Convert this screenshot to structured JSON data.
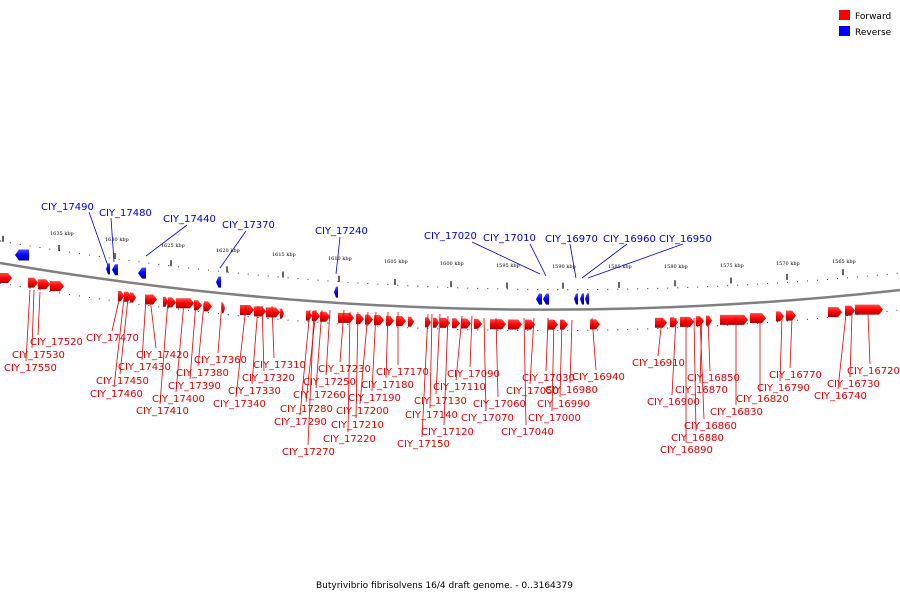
{
  "legend": {
    "forward_label": "Forward",
    "reverse_label": "Reverse",
    "forward_color": "#ff0000",
    "reverse_color": "#0000ff"
  },
  "caption": "Butyrivibrio fibrisolvens 16/4 draft genome. - 0..3164379",
  "ticks": [
    "1635 kbp",
    "1630 kbp",
    "1625 kbp",
    "1620 kbp",
    "1615 kbp",
    "1610 kbp",
    "1605 kbp",
    "1600 kbp",
    "1595 kbp",
    "1590 kbp",
    "1585 kbp",
    "1580 kbp",
    "1575 kbp",
    "1570 kbp",
    "1565 kbp"
  ],
  "reverse_genes": [
    "CIY_17490",
    "CIY_17480",
    "CIY_17440",
    "CIY_17370",
    "CIY_17240",
    "CIY_17020",
    "CIY_17010",
    "CIY_16970",
    "CIY_16960",
    "CIY_16950"
  ],
  "forward_genes": [
    "CIY_17520",
    "CIY_17530",
    "CIY_17550",
    "CIY_17470",
    "CIY_17420",
    "CIY_17430",
    "CIY_17450",
    "CIY_17460",
    "CIY_17380",
    "CIY_17390",
    "CIY_17400",
    "CIY_17410",
    "CIY_17360",
    "CIY_17310",
    "CIY_17320",
    "CIY_17330",
    "CIY_17340",
    "CIY_17230",
    "CIY_17250",
    "CIY_17260",
    "CIY_17280",
    "CIY_17290",
    "CIY_17270",
    "CIY_17170",
    "CIY_17180",
    "CIY_17190",
    "CIY_17200",
    "CIY_17210",
    "CIY_17220",
    "CIY_17090",
    "CIY_17110",
    "CIY_17130",
    "CIY_17140",
    "CIY_17120",
    "CIY_17150",
    "CIY_17030",
    "CIY_17050",
    "CIY_17060",
    "CIY_17070",
    "CIY_16980",
    "CIY_16990",
    "CIY_17000",
    "CIY_17040",
    "CIY_16940",
    "CIY_16910",
    "CIY_16850",
    "CIY_16870",
    "CIY_16900",
    "CIY_16860",
    "CIY_16880",
    "CIY_16890",
    "CIY_16830",
    "CIY_16820",
    "CIY_16770",
    "CIY_16790",
    "CIY_16720",
    "CIY_16730",
    "CIY_16740"
  ]
}
